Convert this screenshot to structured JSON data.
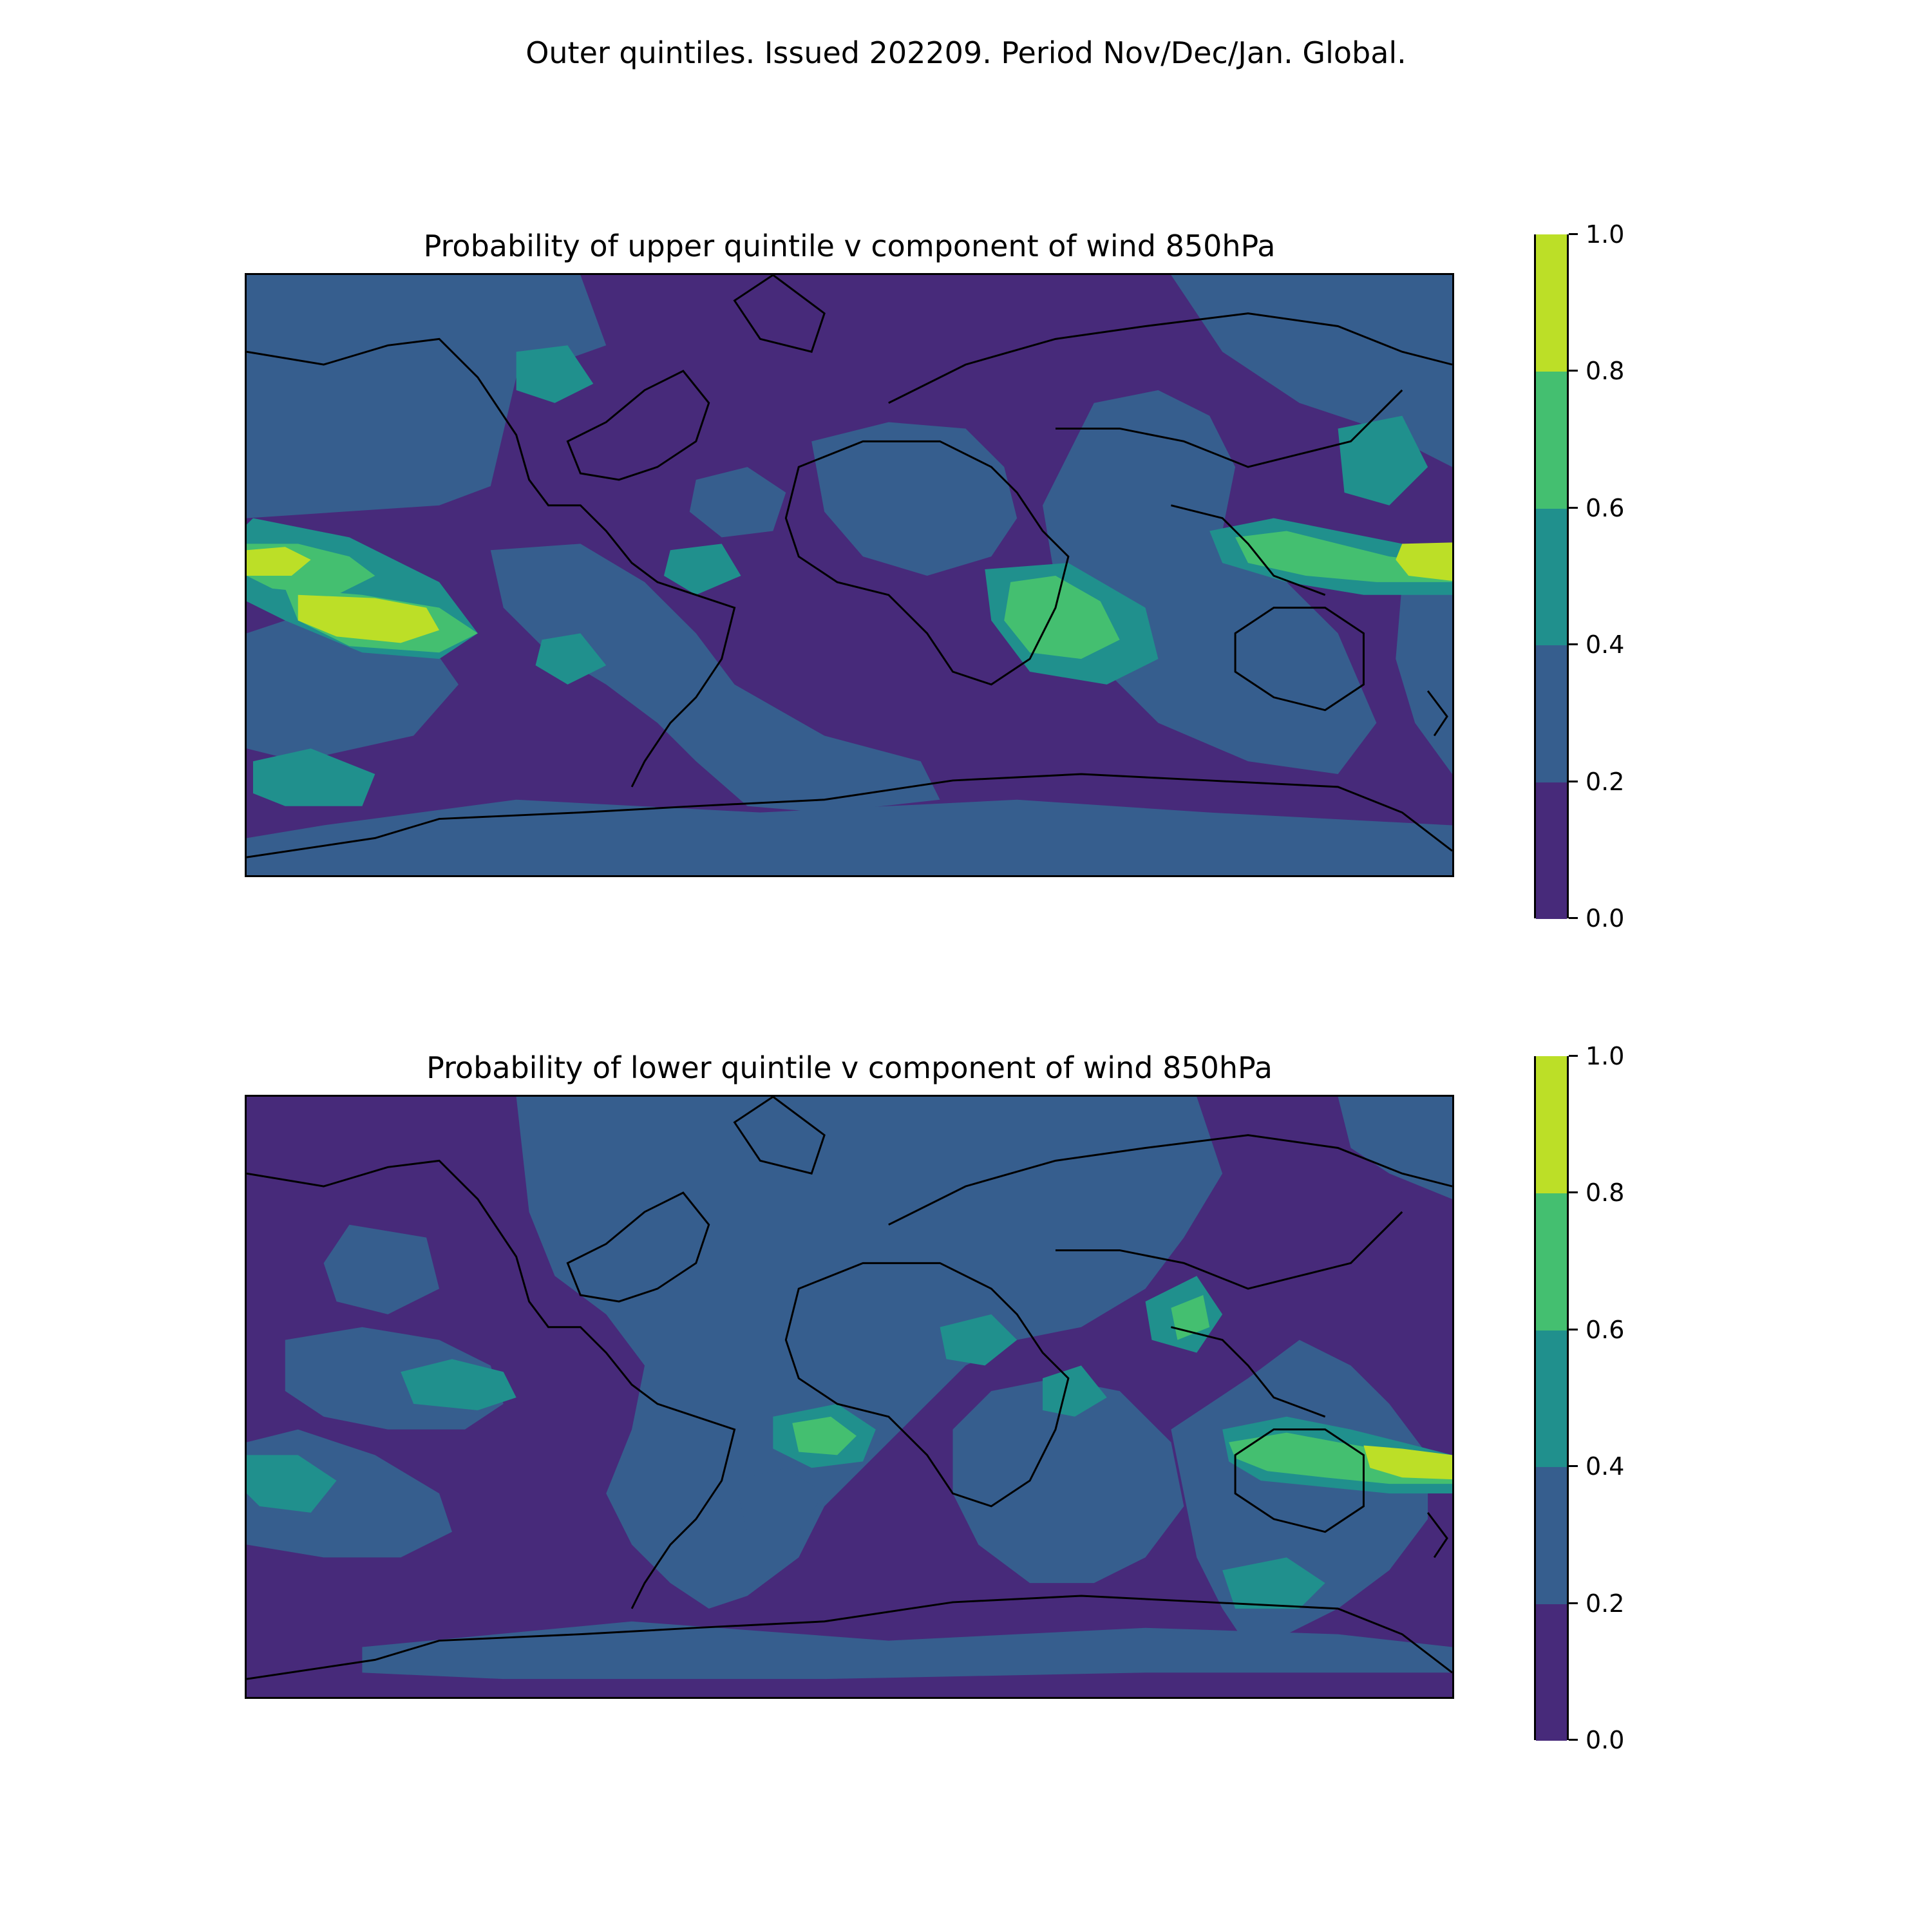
{
  "figure": {
    "suptitle": "Outer quintiles. Issued 202209. Period Nov/Dec/Jan. Global."
  },
  "panels": [
    {
      "id": "upper",
      "title": "Probability of upper quintile v component of wind 850hPa"
    },
    {
      "id": "lower",
      "title": "Probability of lower quintile v component of wind 850hPa"
    }
  ],
  "colorbar": {
    "levels": [
      0.0,
      0.2,
      0.4,
      0.6,
      0.8,
      1.0
    ],
    "tick_labels": [
      "0.0",
      "0.2",
      "0.4",
      "0.6",
      "0.8",
      "1.0"
    ],
    "colors": [
      "#472a7a",
      "#365e8e",
      "#20908d",
      "#44bf70",
      "#bcdf27"
    ]
  },
  "map": {
    "projection": "PlateCarree",
    "lon_range": [
      -180,
      180
    ],
    "lat_range": [
      -90,
      90
    ],
    "coastlines": true
  }
}
